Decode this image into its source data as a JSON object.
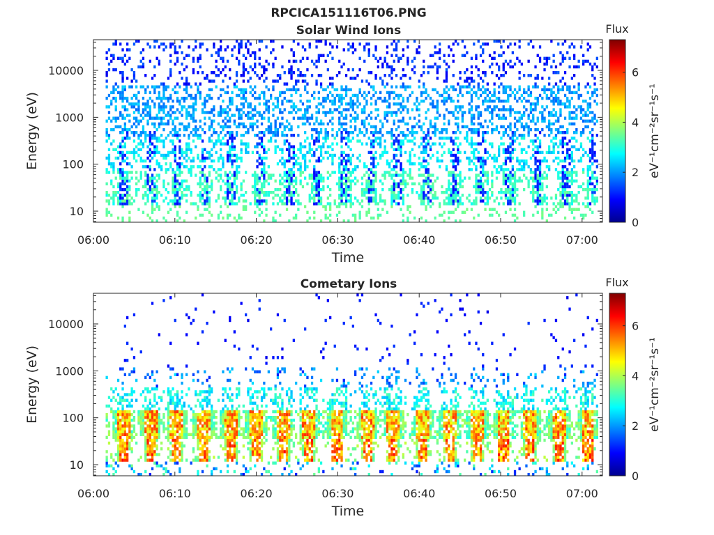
{
  "figure": {
    "title": "RPCICA151116T06.PNG"
  },
  "chart_data": [
    {
      "type": "heatmap",
      "title": "Solar Wind Ions",
      "xlabel": "Time",
      "ylabel": "Energy (eV)",
      "x_ticks": [
        "06:00",
        "06:10",
        "06:20",
        "06:30",
        "06:40",
        "06:50",
        "07:00"
      ],
      "y_scale": "log",
      "y_ticks": [
        "10",
        "100",
        "1000",
        "10000"
      ],
      "colorbar": {
        "title": "Flux",
        "label": "eV⁻¹cm⁻²sr⁻¹s⁻¹",
        "ticks": [
          "0",
          "2",
          "4",
          "6"
        ],
        "range": [
          0,
          7.3
        ]
      },
      "colormap": "jet",
      "grid": false
    },
    {
      "type": "heatmap",
      "title": "Cometary Ions",
      "xlabel": "Time",
      "ylabel": "Energy (eV)",
      "x_ticks": [
        "06:00",
        "06:10",
        "06:20",
        "06:30",
        "06:40",
        "06:50",
        "07:00"
      ],
      "y_scale": "log",
      "y_ticks": [
        "10",
        "100",
        "1000",
        "10000"
      ],
      "colorbar": {
        "title": "Flux",
        "label": "eV⁻¹cm⁻²sr⁻¹s⁻¹",
        "ticks": [
          "0",
          "2",
          "4",
          "6"
        ],
        "range": [
          0,
          7.3
        ]
      },
      "colormap": "jet",
      "grid": false
    }
  ]
}
